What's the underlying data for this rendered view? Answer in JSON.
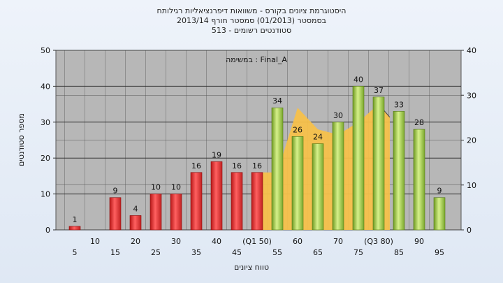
{
  "chart_data": {
    "type": "bar",
    "title_lines": [
      "היסטוגרמת ציונים בקורס - משוואות דיפרנציאליות רגילותח",
      "בסמסטר  (01/2013)  סמסטר חורף 2013/14",
      "סטודנטים רשומים - 513"
    ],
    "annotation": "במשימה : Final_A",
    "xlabel": "טווח ציונים",
    "ylabel": "מספר סטודנטים",
    "categories": [
      "5",
      "10",
      "15",
      "20",
      "25",
      "30",
      "35",
      "40",
      "45",
      "(Q1 50)",
      "55",
      "60",
      "65",
      "70",
      "75",
      "(Q3 80)",
      "85",
      "90",
      "95"
    ],
    "values": [
      1,
      0,
      9,
      4,
      10,
      10,
      16,
      19,
      16,
      16,
      34,
      26,
      24,
      30,
      40,
      37,
      33,
      28,
      9
    ],
    "data_labels": [
      "1",
      "",
      "9",
      "4",
      "10",
      "10",
      "16",
      "19",
      "16",
      "16",
      "34",
      "26",
      "24",
      "30",
      "40",
      "37",
      "33",
      "28",
      "9"
    ],
    "bar_colors": [
      "red",
      "red",
      "red",
      "red",
      "red",
      "red",
      "red",
      "red",
      "red",
      "red",
      "green",
      "green",
      "green",
      "green",
      "green",
      "green",
      "green",
      "green",
      "green"
    ],
    "ylim": [
      0,
      50
    ],
    "yticks": [
      "0",
      "10",
      "20",
      "30",
      "40",
      "50"
    ],
    "y2lim": [
      0,
      40
    ],
    "y2ticks": [
      "0",
      "10",
      "20",
      "30",
      "40"
    ],
    "area_band": {
      "x_index_start": 9,
      "x_index_peak": 15,
      "x_index_end": 16,
      "top_values": [
        16,
        34,
        28,
        26.5,
        30,
        35,
        36
      ],
      "note": "yellow band in the middle 50% of scores"
    },
    "grid": true,
    "colors": {
      "red_bar": "#e03030",
      "green_bar": "#9ccc44",
      "band": "#f5c04a",
      "plot_bg": "#b7b7b7"
    }
  }
}
